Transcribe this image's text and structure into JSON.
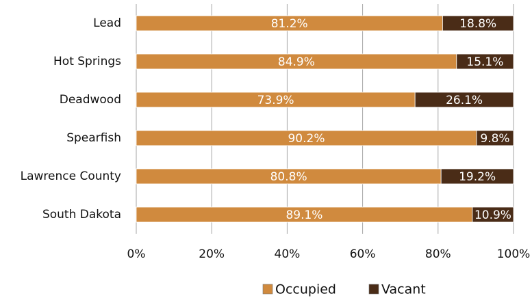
{
  "chart_data": {
    "type": "stacked_barh",
    "categories": [
      "Lead",
      "Hot Springs",
      "Deadwood",
      "Spearfish",
      "Lawrence County",
      "South Dakota"
    ],
    "series": [
      {
        "name": "Occupied",
        "color": "#d08a3e",
        "values": [
          81.2,
          84.9,
          73.9,
          90.2,
          80.8,
          89.1
        ],
        "value_labels": [
          "81.2%",
          "84.9%",
          "73.9%",
          "90.2%",
          "80.8%",
          "89.1%"
        ]
      },
      {
        "name": "Vacant",
        "color": "#4a2c17",
        "values": [
          18.8,
          15.1,
          26.1,
          9.8,
          19.2,
          10.9
        ],
        "value_labels": [
          "18.8%",
          "15.1%",
          "26.1%",
          "9.8%",
          "19.2%",
          "10.9%"
        ]
      }
    ],
    "xlim": [
      0,
      100
    ],
    "xticks": [
      {
        "value": 0,
        "label": "0%"
      },
      {
        "value": 20,
        "label": "20%"
      },
      {
        "value": 40,
        "label": "40%"
      },
      {
        "value": 60,
        "label": "60%"
      },
      {
        "value": 80,
        "label": "80%"
      },
      {
        "value": 100,
        "label": "100%"
      }
    ],
    "grid": true,
    "legend": "bottom"
  }
}
